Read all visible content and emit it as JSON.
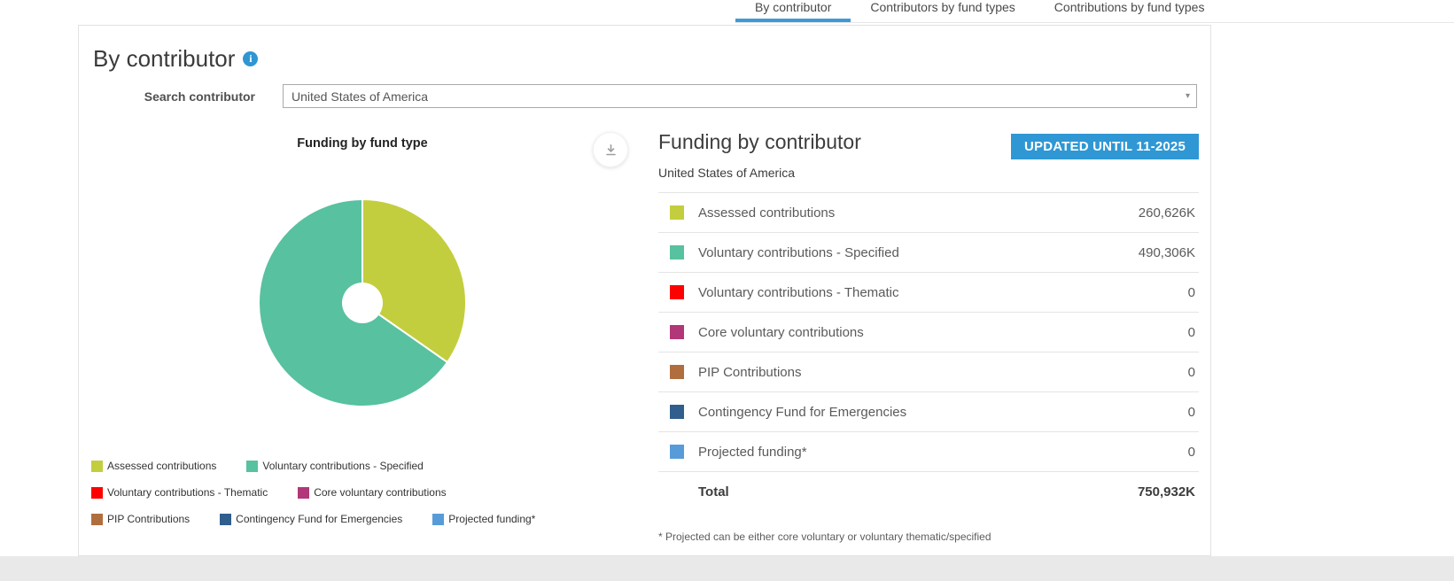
{
  "tabs": {
    "items": [
      {
        "label": "By contributor",
        "active": true
      },
      {
        "label": "Contributors by fund types",
        "active": false
      },
      {
        "label": "Contributions by fund types",
        "active": false
      }
    ]
  },
  "page": {
    "title": "By contributor"
  },
  "search": {
    "label": "Search contributor",
    "value": "United States of America"
  },
  "chart_panel": {
    "title": "Funding by fund type"
  },
  "funding_panel": {
    "title": "Funding by contributor",
    "badge": "UPDATED UNTIL 11-2025",
    "subtitle": "United States of America",
    "rows": [
      {
        "label": "Assessed contributions",
        "color": "#c3ce3e",
        "value": "260,626K"
      },
      {
        "label": "Voluntary contributions - Specified",
        "color": "#57c1a0",
        "value": "490,306K"
      },
      {
        "label": "Voluntary contributions - Thematic",
        "color": "#ff0000",
        "value": "0"
      },
      {
        "label": "Core voluntary contributions",
        "color": "#b13778",
        "value": "0"
      },
      {
        "label": "PIP Contributions",
        "color": "#b06e3e",
        "value": "0"
      },
      {
        "label": "Contingency Fund for Emergencies",
        "color": "#305e8d",
        "value": "0"
      },
      {
        "label": "Projected funding*",
        "color": "#579cd9",
        "value": "0"
      }
    ],
    "total": {
      "label": "Total",
      "value": "750,932K"
    },
    "footnote": "* Projected can be either core voluntary or voluntary thematic/specified"
  },
  "chart_data": {
    "type": "pie",
    "donut": true,
    "title": "Funding by fund type",
    "labels": [
      "Assessed contributions",
      "Voluntary contributions - Specified",
      "Voluntary contributions - Thematic",
      "Core voluntary contributions",
      "PIP Contributions",
      "Contingency Fund for Emergencies",
      "Projected funding*"
    ],
    "values": [
      260626,
      490306,
      0,
      0,
      0,
      0,
      0
    ],
    "value_suffix": "K",
    "total": 750932,
    "colors": [
      "#c3ce3e",
      "#57c1a0",
      "#ff0000",
      "#b13778",
      "#b06e3e",
      "#305e8d",
      "#579cd9"
    ],
    "legend_position": "bottom",
    "inner_radius_ratio": 0.19
  },
  "colors": {
    "accent_blue": "#2f97d4",
    "tab_underline": "#3d9ad6"
  }
}
